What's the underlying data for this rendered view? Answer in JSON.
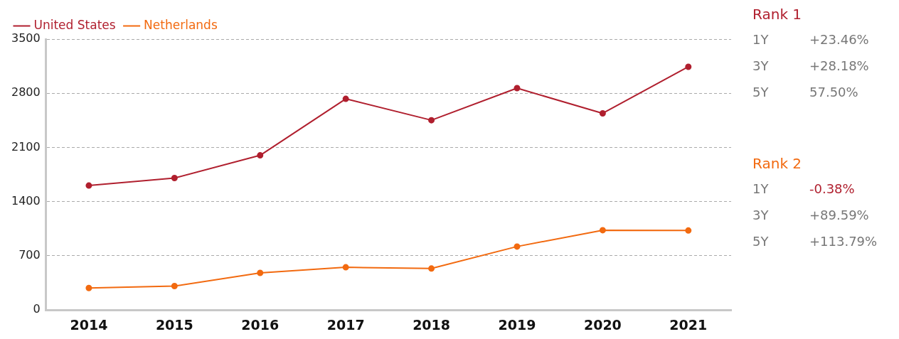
{
  "chart_data": {
    "type": "line",
    "categories": [
      "2014",
      "2015",
      "2016",
      "2017",
      "2018",
      "2019",
      "2020",
      "2021"
    ],
    "series": [
      {
        "name": "United States",
        "color": "#b01f2e",
        "values": [
          1608,
          1705,
          1998,
          2728,
          2452,
          2866,
          2541,
          3142
        ]
      },
      {
        "name": "Netherlands",
        "color": "#f26a10",
        "values": [
          284,
          309,
          479,
          552,
          536,
          820,
          1031,
          1027
        ]
      }
    ],
    "ylim": [
      0,
      3500
    ],
    "yticks": [
      0,
      700,
      1400,
      2100,
      2800,
      3500
    ],
    "grid": "y",
    "legend": "top left",
    "marker": "circle",
    "line_style": "solid",
    "annotations": [
      "Rank 1",
      "1Y",
      "+23.46%",
      "3Y",
      "+28.18%",
      "5Y",
      "57.50%",
      "Rank 2",
      "1Y",
      "-0.38%",
      "3Y",
      "+89.59%",
      "5Y",
      "+113.79%"
    ]
  }
}
